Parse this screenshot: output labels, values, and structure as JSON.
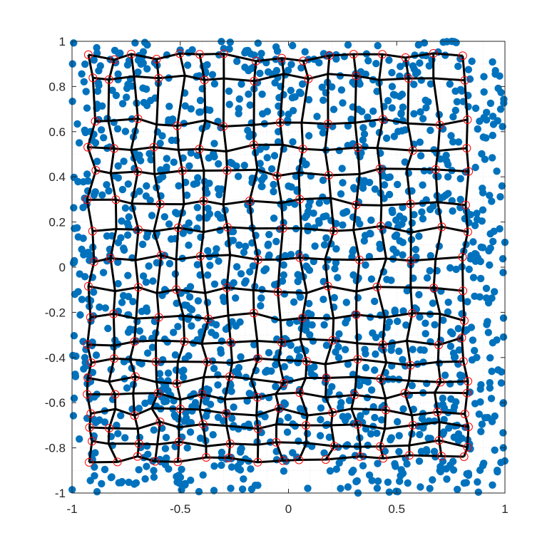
{
  "chart_data": {
    "type": "scatter",
    "title": "",
    "xlabel": "",
    "ylabel": "",
    "xlim": [
      -1,
      1
    ],
    "ylim": [
      -1,
      1
    ],
    "x_ticks": [
      "-1",
      "-0.5",
      "0",
      "0.5",
      "1"
    ],
    "y_ticks": [
      "1",
      "0.8",
      "0.6",
      "0.4",
      "0.2",
      "0",
      "-0.2",
      "-0.4",
      "-0.6",
      "-0.8",
      "-1"
    ],
    "x_tick_values": [
      -1,
      -0.5,
      0,
      0.5,
      1
    ],
    "y_tick_values": [
      1,
      0.8,
      0.6,
      0.4,
      0.2,
      0,
      -0.2,
      -0.4,
      -0.6,
      -0.8,
      -1
    ],
    "grid": true,
    "series": [
      {
        "kind": "scatter",
        "marker": "filled-circle",
        "color": "#0072bd",
        "count": 1500,
        "distribution": "uniform random over [-1,1] x [-1,1]"
      },
      {
        "kind": "grid-mesh",
        "line_color": "#000000",
        "node_marker": "open-circle",
        "node_color": "#ff0000",
        "rows": 18,
        "cols": 16,
        "row_y": [
          0.93,
          0.84,
          0.64,
          0.53,
          0.42,
          0.29,
          0.17,
          0.04,
          -0.1,
          -0.22,
          -0.33,
          -0.42,
          -0.5,
          -0.57,
          -0.64,
          -0.7,
          -0.78,
          -0.85
        ],
        "col_x": [
          -0.91,
          -0.81,
          -0.71,
          -0.61,
          -0.5,
          -0.39,
          -0.28,
          -0.16,
          -0.04,
          0.07,
          0.19,
          0.31,
          0.43,
          0.56,
          0.69,
          0.82
        ]
      }
    ]
  }
}
